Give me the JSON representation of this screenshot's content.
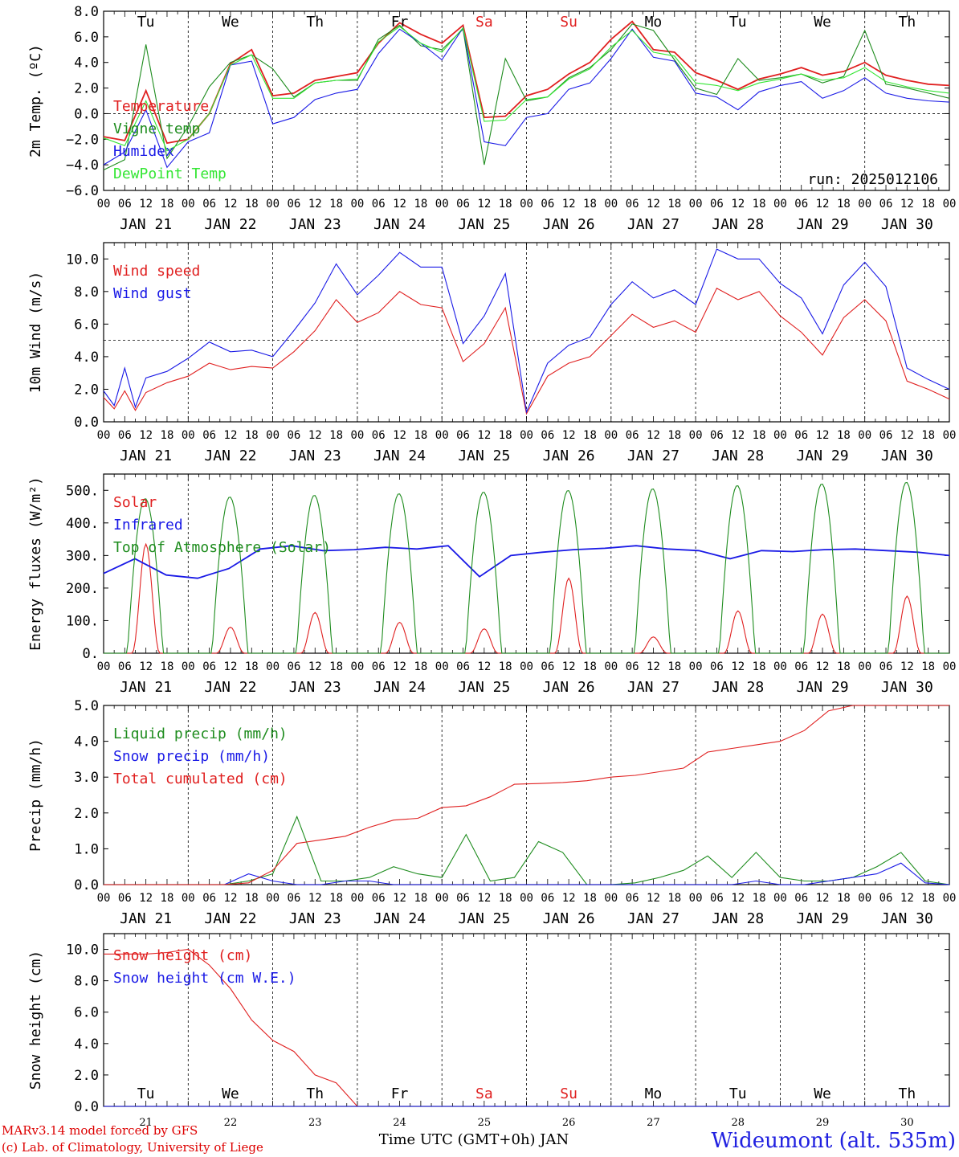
{
  "station": "Wideumont (alt. 535m)",
  "footer": {
    "line1": "MARv3.14 model forced by GFS",
    "line2": "(c) Lab. of Climatology, University of Liege",
    "xtitle": "Time UTC (GMT+0h) JAN"
  },
  "run": "run: 2025012106",
  "days": [
    {
      "abbr": "Tu",
      "date": "JAN 21",
      "num": "21",
      "weekend": false
    },
    {
      "abbr": "We",
      "date": "JAN 22",
      "num": "22",
      "weekend": false
    },
    {
      "abbr": "Th",
      "date": "JAN 23",
      "num": "23",
      "weekend": false
    },
    {
      "abbr": "Fr",
      "date": "JAN 24",
      "num": "24",
      "weekend": false
    },
    {
      "abbr": "Sa",
      "date": "JAN 25",
      "num": "25",
      "weekend": true
    },
    {
      "abbr": "Su",
      "date": "JAN 26",
      "num": "26",
      "weekend": true
    },
    {
      "abbr": "Mo",
      "date": "JAN 27",
      "num": "27",
      "weekend": false
    },
    {
      "abbr": "Tu",
      "date": "JAN 28",
      "num": "28",
      "weekend": false
    },
    {
      "abbr": "We",
      "date": "JAN 29",
      "num": "29",
      "weekend": false
    },
    {
      "abbr": "Th",
      "date": "JAN 30",
      "num": "30",
      "weekend": false
    }
  ],
  "hour_labels": [
    "00",
    "06",
    "12",
    "18"
  ],
  "colors": {
    "red": "#e02020",
    "green": "#1e8c1e",
    "blue": "#1a1ae6",
    "lightgreen": "#33e633",
    "weekend": "#e02020"
  },
  "chart_data": [
    {
      "type": "line",
      "ylabel": "2m Temp. (ºC)",
      "ylim": [
        -6,
        8
      ],
      "yticks": [
        "8.0",
        "6.0",
        "4.0",
        "2.0",
        "0.0",
        "−2.0",
        "−4.0",
        "−6.0"
      ],
      "dashed_level": 0,
      "x_hours_from_start": [
        0,
        6,
        12,
        18,
        24,
        30,
        36,
        42,
        48,
        54,
        60,
        66,
        72,
        78,
        84,
        90,
        96,
        102,
        108,
        114,
        120,
        126,
        132,
        138,
        144,
        150,
        156,
        162,
        168,
        174,
        180,
        186,
        192,
        198,
        204,
        210,
        216,
        222,
        228,
        234,
        240
      ],
      "series": [
        {
          "name": "Temperature",
          "color": "red",
          "values": [
            -1.8,
            -2.1,
            1.8,
            -2.3,
            -2.0,
            0.0,
            3.9,
            5.0,
            1.4,
            1.6,
            2.6,
            2.9,
            3.2,
            5.5,
            7.1,
            6.2,
            5.5,
            6.9,
            -0.3,
            -0.2,
            1.4,
            1.9,
            3.1,
            4.0,
            5.8,
            7.2,
            5.0,
            4.8,
            3.2,
            2.6,
            1.9,
            2.7,
            3.1,
            3.6,
            3.0,
            3.3,
            4.0,
            3.0,
            2.6,
            2.3,
            2.2
          ]
        },
        {
          "name": "Vigne temp",
          "color": "green",
          "values": [
            -4.4,
            -3.6,
            5.4,
            -3.5,
            -1.0,
            2.1,
            4.0,
            4.6,
            3.5,
            1.3,
            2.4,
            2.6,
            2.6,
            5.8,
            6.9,
            5.3,
            5.0,
            6.6,
            -4.0,
            4.3,
            1.0,
            1.3,
            2.8,
            3.6,
            5.0,
            7.0,
            6.5,
            4.2,
            2.0,
            1.5,
            4.3,
            2.6,
            2.8,
            3.1,
            2.4,
            2.9,
            6.5,
            2.3,
            2.0,
            1.6,
            1.2
          ]
        },
        {
          "name": "Humidex",
          "color": "blue",
          "values": [
            -4.0,
            -3.0,
            0.3,
            -4.2,
            -2.2,
            -1.5,
            3.8,
            4.1,
            -0.8,
            -0.3,
            1.1,
            1.6,
            1.9,
            4.7,
            6.6,
            5.5,
            4.2,
            6.7,
            -2.2,
            -2.5,
            -0.3,
            0.0,
            1.9,
            2.4,
            4.3,
            6.6,
            4.4,
            4.1,
            1.6,
            1.3,
            0.3,
            1.7,
            2.2,
            2.5,
            1.2,
            1.8,
            2.8,
            1.6,
            1.2,
            1.0,
            0.9
          ]
        },
        {
          "name": "DewPoint Temp",
          "color": "lightgreen",
          "values": [
            -1.9,
            -2.5,
            1.0,
            -2.9,
            -2.0,
            0.0,
            3.8,
            4.6,
            1.2,
            1.2,
            2.4,
            2.6,
            2.7,
            5.6,
            6.8,
            5.5,
            4.8,
            6.7,
            -0.6,
            -0.5,
            1.1,
            1.3,
            2.7,
            3.5,
            5.2,
            6.5,
            4.8,
            4.5,
            2.4,
            2.2,
            1.8,
            2.4,
            2.7,
            3.1,
            2.6,
            2.8,
            3.6,
            2.5,
            2.1,
            1.8,
            1.6
          ]
        }
      ]
    },
    {
      "type": "line",
      "ylabel": "10m Wind (m/s)",
      "ylim": [
        0,
        11
      ],
      "yticks": [
        "10.0",
        "8.0",
        "6.0",
        "4.0",
        "2.0",
        "0.0"
      ],
      "dashed_level": 5,
      "x_hours_from_start": [
        0,
        3,
        6,
        9,
        12,
        18,
        24,
        30,
        36,
        42,
        48,
        54,
        60,
        66,
        72,
        78,
        84,
        90,
        96,
        102,
        108,
        114,
        120,
        126,
        132,
        138,
        144,
        150,
        156,
        162,
        168,
        174,
        180,
        186,
        192,
        198,
        204,
        210,
        216,
        222,
        228,
        234,
        240
      ],
      "series": [
        {
          "name": "Wind speed",
          "color": "red",
          "values": [
            1.5,
            0.8,
            1.9,
            0.7,
            1.8,
            2.4,
            2.8,
            3.6,
            3.2,
            3.4,
            3.3,
            4.3,
            5.6,
            7.5,
            6.1,
            6.7,
            8.0,
            7.2,
            7.0,
            3.7,
            4.8,
            7.0,
            0.5,
            2.8,
            3.6,
            4.0,
            5.3,
            6.6,
            5.8,
            6.2,
            5.5,
            8.2,
            7.5,
            8.0,
            6.5,
            5.5,
            4.1,
            6.4,
            7.5,
            6.2,
            2.5,
            2.0,
            1.4
          ]
        },
        {
          "name": "Wind gust",
          "color": "blue",
          "values": [
            1.9,
            1.0,
            3.3,
            0.9,
            2.7,
            3.1,
            3.9,
            4.9,
            4.3,
            4.4,
            4.0,
            5.6,
            7.3,
            9.7,
            7.8,
            9.0,
            10.4,
            9.5,
            9.5,
            4.8,
            6.5,
            9.1,
            0.6,
            3.6,
            4.7,
            5.2,
            7.2,
            8.6,
            7.6,
            8.1,
            7.2,
            10.6,
            10.0,
            10.0,
            8.5,
            7.6,
            5.4,
            8.4,
            9.8,
            8.3,
            3.3,
            2.6,
            2.0
          ]
        }
      ]
    },
    {
      "type": "line",
      "ylabel": "Energy fluxes (W/m²)",
      "ylim": [
        0,
        550
      ],
      "yticks": [
        "500.",
        "400.",
        "300.",
        "200.",
        "100.",
        "0."
      ],
      "series": [
        {
          "name": "Solar",
          "color": "red",
          "day_peaks": [
            335,
            80,
            125,
            95,
            75,
            230,
            50,
            130,
            120,
            175
          ]
        },
        {
          "name": "Infrared",
          "color": "blue",
          "values": [
            245,
            290,
            240,
            230,
            260,
            320,
            330,
            315,
            318,
            325,
            320,
            330,
            235,
            300,
            310,
            318,
            322,
            330,
            320,
            315,
            290,
            315,
            312,
            318,
            320,
            315,
            310,
            300
          ]
        },
        {
          "name": "Top of Atmosphere (Solar)",
          "color": "green",
          "day_peaks": [
            475,
            480,
            485,
            490,
            495,
            500,
            505,
            515,
            520,
            525
          ]
        }
      ]
    },
    {
      "type": "line",
      "ylabel": "Precip (mm/h)",
      "ylim": [
        0,
        5
      ],
      "yticks": [
        "5.0",
        "4.0",
        "3.0",
        "2.0",
        "1.0",
        "0.0"
      ],
      "series": [
        {
          "name": "Liquid precip (mm/h)",
          "color": "green",
          "values": [
            0,
            0,
            0,
            0,
            0,
            0,
            0.1,
            0.3,
            1.9,
            0.1,
            0.1,
            0.2,
            0.5,
            0.3,
            0.2,
            1.4,
            0.1,
            0.2,
            1.2,
            0.9,
            0,
            0,
            0.05,
            0.2,
            0.4,
            0.8,
            0.2,
            0.9,
            0.2,
            0.1,
            0.1,
            0.2,
            0.5,
            0.9,
            0.1,
            0
          ]
        },
        {
          "name": "Snow precip (mm/h)",
          "color": "blue",
          "values": [
            0,
            0,
            0,
            0,
            0,
            0,
            0.3,
            0.1,
            0,
            0,
            0.1,
            0.1,
            0,
            0,
            0,
            0,
            0,
            0,
            0,
            0,
            0,
            0,
            0,
            0,
            0,
            0,
            0,
            0.1,
            0,
            0,
            0.1,
            0.2,
            0.3,
            0.6,
            0.05,
            0
          ]
        },
        {
          "name": "Total cumulated (cm)",
          "color": "red",
          "values": [
            0,
            0,
            0,
            0,
            0,
            0,
            0.05,
            0.4,
            1.15,
            1.25,
            1.35,
            1.6,
            1.8,
            1.85,
            2.15,
            2.2,
            2.45,
            2.8,
            2.82,
            2.85,
            2.9,
            3.0,
            3.05,
            3.15,
            3.25,
            3.7,
            3.8,
            3.9,
            4.0,
            4.3,
            4.85,
            5.0,
            5.0,
            5.0,
            5.0,
            5.0
          ]
        }
      ]
    },
    {
      "type": "line",
      "ylabel": "Snow height (cm)",
      "ylim": [
        0,
        11
      ],
      "yticks": [
        "10.0",
        "8.0",
        "6.0",
        "4.0",
        "2.0",
        "0.0"
      ],
      "series": [
        {
          "name": "Snow height (cm)",
          "color": "red",
          "values": [
            9.7,
            9.7,
            9.7,
            9.8,
            10.0,
            9.0,
            7.5,
            5.5,
            4.2,
            3.5,
            2.0,
            1.5,
            0.0,
            0.0,
            0.0,
            0.0,
            0.0,
            0.0,
            0.0,
            0.0,
            0.0,
            0.0,
            0.0,
            0.0,
            0.0,
            0.0,
            0.0,
            0.0,
            0.0,
            0.0,
            0.0,
            0.0,
            0.0,
            0.0,
            0.0,
            0.0,
            0.0,
            0.0,
            0.0,
            0.0,
            0.0
          ]
        },
        {
          "name": "Snow height (cm W.E.)",
          "color": "blue",
          "values": [
            0,
            0,
            0,
            0,
            0,
            0,
            0,
            0,
            0,
            0,
            0,
            0,
            0,
            0,
            0,
            0,
            0,
            0,
            0,
            0,
            0,
            0,
            0,
            0,
            0,
            0,
            0,
            0,
            0,
            0,
            0,
            0,
            0,
            0,
            0,
            0,
            0,
            0,
            0,
            0,
            0
          ]
        }
      ]
    }
  ]
}
